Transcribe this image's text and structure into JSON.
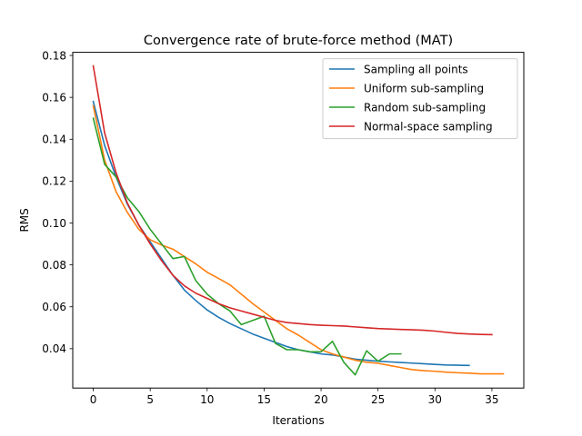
{
  "chart_data": {
    "type": "line",
    "title": "Convergence rate of brute-force method (MAT)",
    "xlabel": "Iterations",
    "ylabel": "RMS",
    "xlim": [
      -1.8,
      37.8
    ],
    "ylim": [
      0.0212,
      0.1815
    ],
    "xticks": [
      0,
      5,
      10,
      15,
      20,
      25,
      30,
      35
    ],
    "yticks": [
      0.04,
      0.06,
      0.08,
      0.1,
      0.12,
      0.14,
      0.16,
      0.18
    ],
    "ytick_labels": [
      "0.04",
      "0.06",
      "0.08",
      "0.10",
      "0.12",
      "0.14",
      "0.16",
      "0.18"
    ],
    "grid": false,
    "legend_position": "top-right",
    "series": [
      {
        "name": "Sampling all points",
        "color": "#1f77b4",
        "x": [
          0,
          1,
          2,
          3,
          4,
          5,
          6,
          7,
          8,
          9,
          10,
          11,
          12,
          13,
          14,
          15,
          16,
          17,
          18,
          19,
          20,
          21,
          22,
          23,
          24,
          25,
          26,
          27,
          28,
          29,
          30,
          31,
          32,
          33
        ],
        "y": [
          0.158,
          0.137,
          0.122,
          0.109,
          0.099,
          0.091,
          0.083,
          0.075,
          0.068,
          0.063,
          0.0585,
          0.055,
          0.052,
          0.0495,
          0.047,
          0.045,
          0.043,
          0.041,
          0.0395,
          0.0385,
          0.0375,
          0.037,
          0.036,
          0.035,
          0.0345,
          0.034,
          0.0337,
          0.0334,
          0.0331,
          0.0328,
          0.0325,
          0.0322,
          0.0321,
          0.032
        ]
      },
      {
        "name": "Uniform sub-sampling",
        "color": "#ff7f0e",
        "x": [
          0,
          1,
          2,
          3,
          4,
          5,
          6,
          7,
          8,
          9,
          10,
          11,
          12,
          13,
          14,
          15,
          16,
          17,
          18,
          19,
          20,
          21,
          22,
          23,
          24,
          25,
          26,
          27,
          28,
          29,
          30,
          31,
          32,
          33,
          34,
          35,
          36
        ],
        "y": [
          0.156,
          0.13,
          0.115,
          0.105,
          0.097,
          0.092,
          0.0895,
          0.0875,
          0.084,
          0.0805,
          0.0765,
          0.0735,
          0.0705,
          0.066,
          0.0615,
          0.0575,
          0.0535,
          0.0495,
          0.0465,
          0.043,
          0.0395,
          0.0375,
          0.036,
          0.0345,
          0.0335,
          0.033,
          0.032,
          0.031,
          0.03,
          0.0295,
          0.0292,
          0.0288,
          0.0285,
          0.0283,
          0.028,
          0.028,
          0.028
        ]
      },
      {
        "name": "Random sub-sampling",
        "color": "#2ca02c",
        "x": [
          0,
          1,
          2,
          3,
          4,
          5,
          6,
          7,
          8,
          9,
          10,
          11,
          12,
          13,
          14,
          15,
          16,
          17,
          18,
          19,
          20,
          21,
          22,
          23,
          24,
          25,
          26,
          27
        ],
        "y": [
          0.15,
          0.128,
          0.122,
          0.112,
          0.1055,
          0.097,
          0.09,
          0.083,
          0.084,
          0.0725,
          0.066,
          0.0615,
          0.058,
          0.0515,
          0.0535,
          0.0555,
          0.0425,
          0.0395,
          0.0395,
          0.0385,
          0.0385,
          0.0435,
          0.0335,
          0.0275,
          0.039,
          0.034,
          0.0375,
          0.0375
        ]
      },
      {
        "name": "Normal-space sampling",
        "color": "#d62728",
        "x": [
          0,
          1,
          2,
          3,
          4,
          5,
          6,
          7,
          8,
          9,
          10,
          11,
          12,
          13,
          14,
          15,
          16,
          17,
          18,
          19,
          20,
          21,
          22,
          23,
          24,
          25,
          26,
          27,
          28,
          29,
          30,
          31,
          32,
          33,
          34,
          35
        ],
        "y": [
          0.175,
          0.143,
          0.124,
          0.1095,
          0.099,
          0.09,
          0.082,
          0.075,
          0.07,
          0.0665,
          0.064,
          0.0615,
          0.0595,
          0.058,
          0.0565,
          0.055,
          0.0535,
          0.0525,
          0.052,
          0.0515,
          0.0512,
          0.051,
          0.0508,
          0.0504,
          0.05,
          0.0496,
          0.0494,
          0.0492,
          0.049,
          0.0488,
          0.0484,
          0.0478,
          0.0473,
          0.047,
          0.0468,
          0.0467
        ]
      }
    ]
  }
}
